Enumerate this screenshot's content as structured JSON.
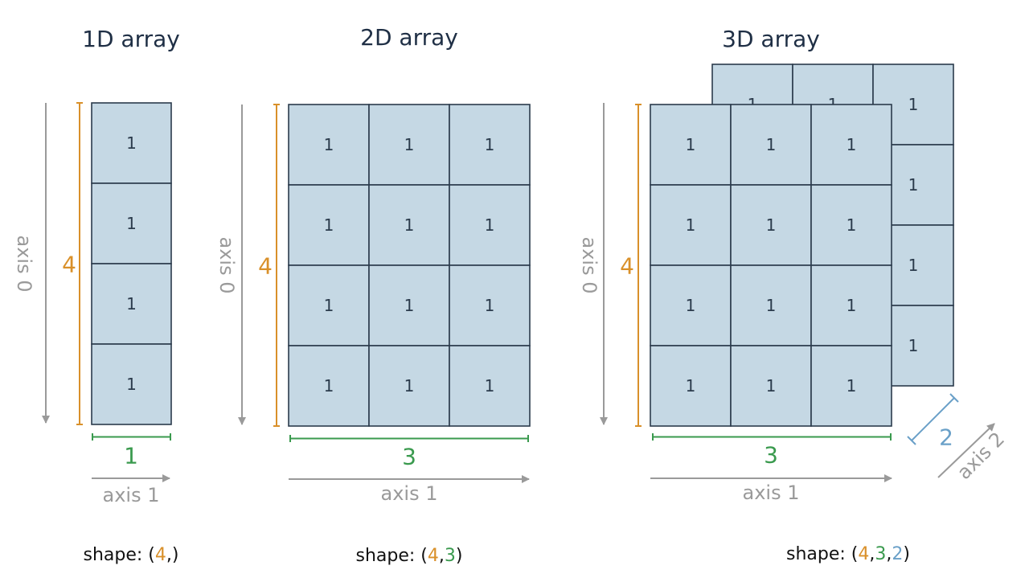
{
  "colors": {
    "axis0": "#d9902a",
    "axis1": "#3a9a4e",
    "axis2": "#6aa0c8",
    "cell_fill": "#c5d8e4",
    "cell_stroke": "#2b3b4c",
    "axis_arrow": "#9a9a9a"
  },
  "cell_value": "1",
  "arrays": [
    {
      "title": "1D array",
      "rows": 4,
      "cols": 1,
      "layers": 1,
      "axis0_label": "axis 0",
      "axis0_size": "4",
      "axis1_label": "axis 1",
      "axis1_size": "1",
      "shape_prefix": "shape: (",
      "shape_parts": [
        "4",
        ","
      ],
      "shape_suffix": ")"
    },
    {
      "title": "2D array",
      "rows": 4,
      "cols": 3,
      "layers": 1,
      "axis0_label": "axis 0",
      "axis0_size": "4",
      "axis1_label": "axis 1",
      "axis1_size": "3",
      "shape_prefix": "shape: (",
      "shape_parts": [
        "4",
        ",",
        "3"
      ],
      "shape_suffix": ")"
    },
    {
      "title": "3D array",
      "rows": 4,
      "cols": 3,
      "layers": 2,
      "axis0_label": "axis 0",
      "axis0_size": "4",
      "axis1_label": "axis 1",
      "axis1_size": "3",
      "axis2_label": "axis 2",
      "axis2_size": "2",
      "shape_prefix": "shape: (",
      "shape_parts": [
        "4",
        ",",
        "3",
        ",",
        "2"
      ],
      "shape_suffix": ")"
    }
  ]
}
